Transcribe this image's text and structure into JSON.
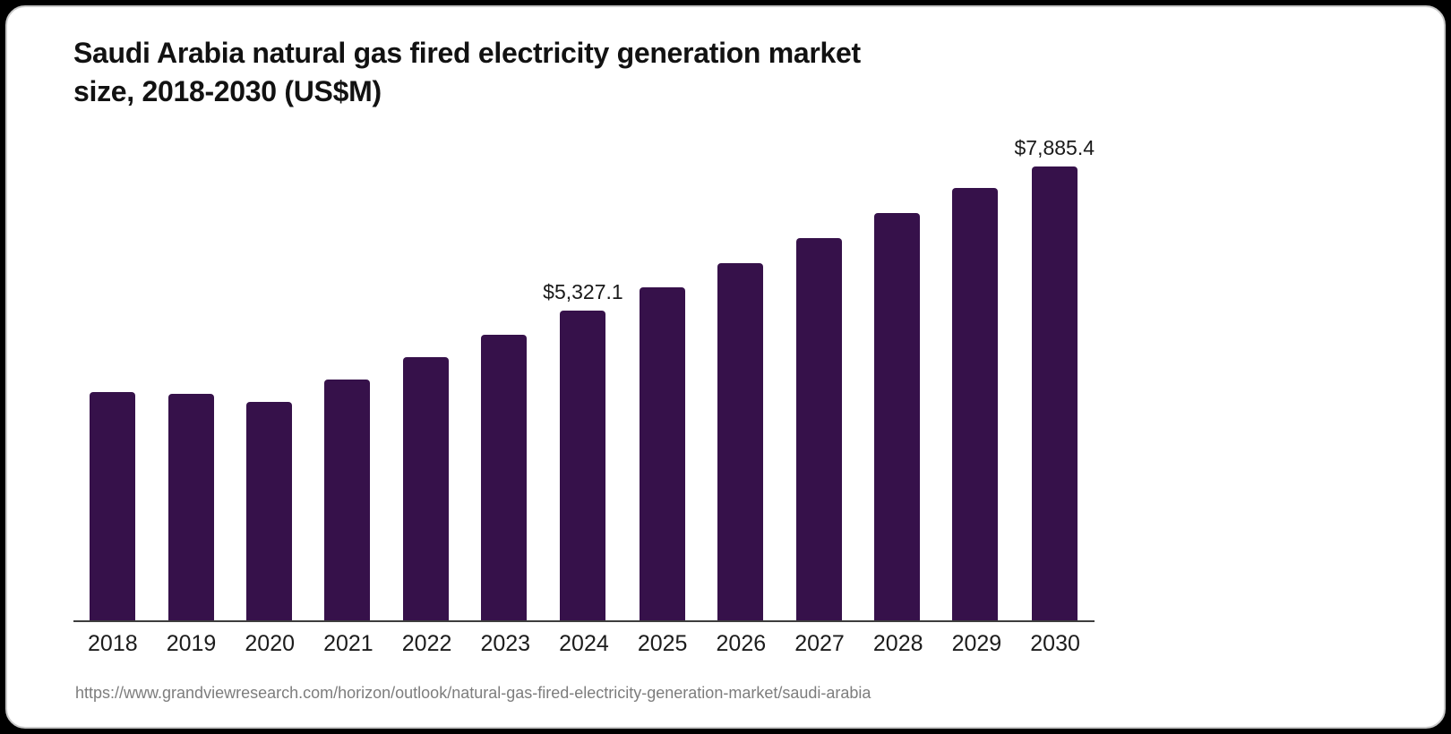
{
  "header": {
    "title_line1": "Saudi Arabia natural gas fired electricity generation market",
    "title_line2": "size, 2018-2030 (US$M)"
  },
  "footer": {
    "source_url": "https://www.grandviewresearch.com/horizon/outlook/natural-gas-fired-electricity-generation-market/saudi-arabia"
  },
  "colors": {
    "bar": "#36114a",
    "axis": "#3d3d3d",
    "title_text": "#121212",
    "label_text": "#1a1a1a",
    "source_text": "#7d7d7d",
    "card_background": "#ffffff",
    "page_background": "#000000",
    "card_border": "#c9c9c9"
  },
  "chart_data": {
    "type": "bar",
    "title": "Saudi Arabia natural gas fired electricity generation market size, 2018-2030 (US$M)",
    "categories": [
      "2018",
      "2019",
      "2020",
      "2021",
      "2022",
      "2023",
      "2024",
      "2025",
      "2026",
      "2027",
      "2028",
      "2029",
      "2030"
    ],
    "values": [
      3930,
      3900,
      3760,
      4140,
      4530,
      4910,
      5327.1,
      5730,
      6150,
      6580,
      7010,
      7440,
      7885.4
    ],
    "data_labels": {
      "2024": "$5,327.1",
      "2030": "$7,885.4"
    },
    "xlabel": "",
    "ylabel": "US$M",
    "ylim": [
      0,
      7885.4
    ],
    "grid": false,
    "legend": false,
    "y_axis_shown": false
  }
}
